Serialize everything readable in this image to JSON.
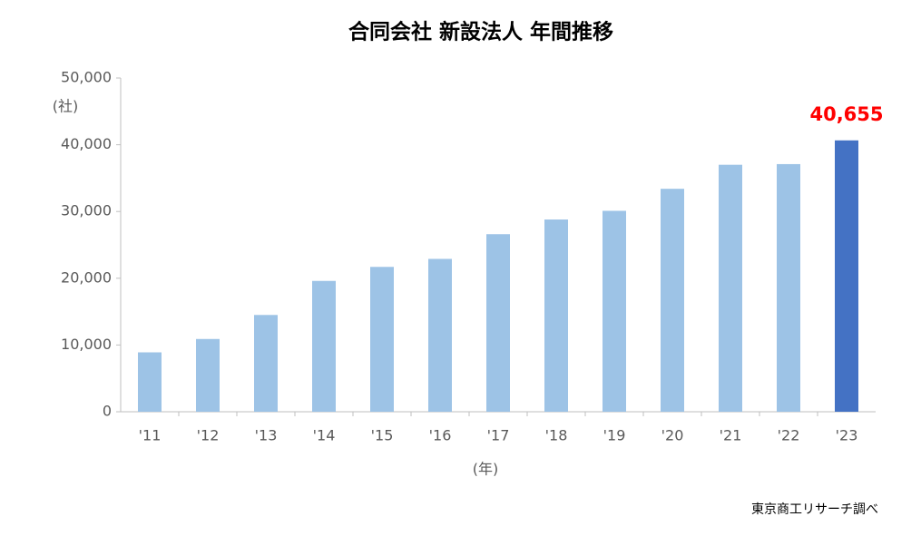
{
  "chart_data": {
    "type": "bar",
    "title": "合同会社 新設法人 年間推移",
    "y_unit": "(社)",
    "x_unit": "(年)",
    "source": "東京商工リサーチ調べ",
    "categories": [
      "'11",
      "'12",
      "'13",
      "'14",
      "'15",
      "'16",
      "'17",
      "'18",
      "'19",
      "'20",
      "'21",
      "'22",
      "'23"
    ],
    "values": [
      8900,
      10900,
      14500,
      19600,
      21700,
      22900,
      26600,
      28800,
      30100,
      33400,
      37000,
      37100,
      40655
    ],
    "value_labels": [
      null,
      null,
      null,
      null,
      null,
      null,
      null,
      null,
      null,
      null,
      null,
      null,
      "40,655"
    ],
    "colors": [
      "#9dc3e6",
      "#9dc3e6",
      "#9dc3e6",
      "#9dc3e6",
      "#9dc3e6",
      "#9dc3e6",
      "#9dc3e6",
      "#9dc3e6",
      "#9dc3e6",
      "#9dc3e6",
      "#9dc3e6",
      "#9dc3e6",
      "#4472c4"
    ],
    "value_label_color": "#ff0000",
    "ylim": [
      0,
      50000
    ],
    "yticks": [
      0,
      {
        "value": 10000,
        "label": "10,000"
      },
      {
        "value": 20000,
        "label": "20,000"
      },
      {
        "value": 30000,
        "label": "30,000"
      },
      {
        "value": 40000,
        "label": "40,000"
      },
      {
        "value": 50000,
        "label": "50,000"
      }
    ],
    "grid": false
  }
}
